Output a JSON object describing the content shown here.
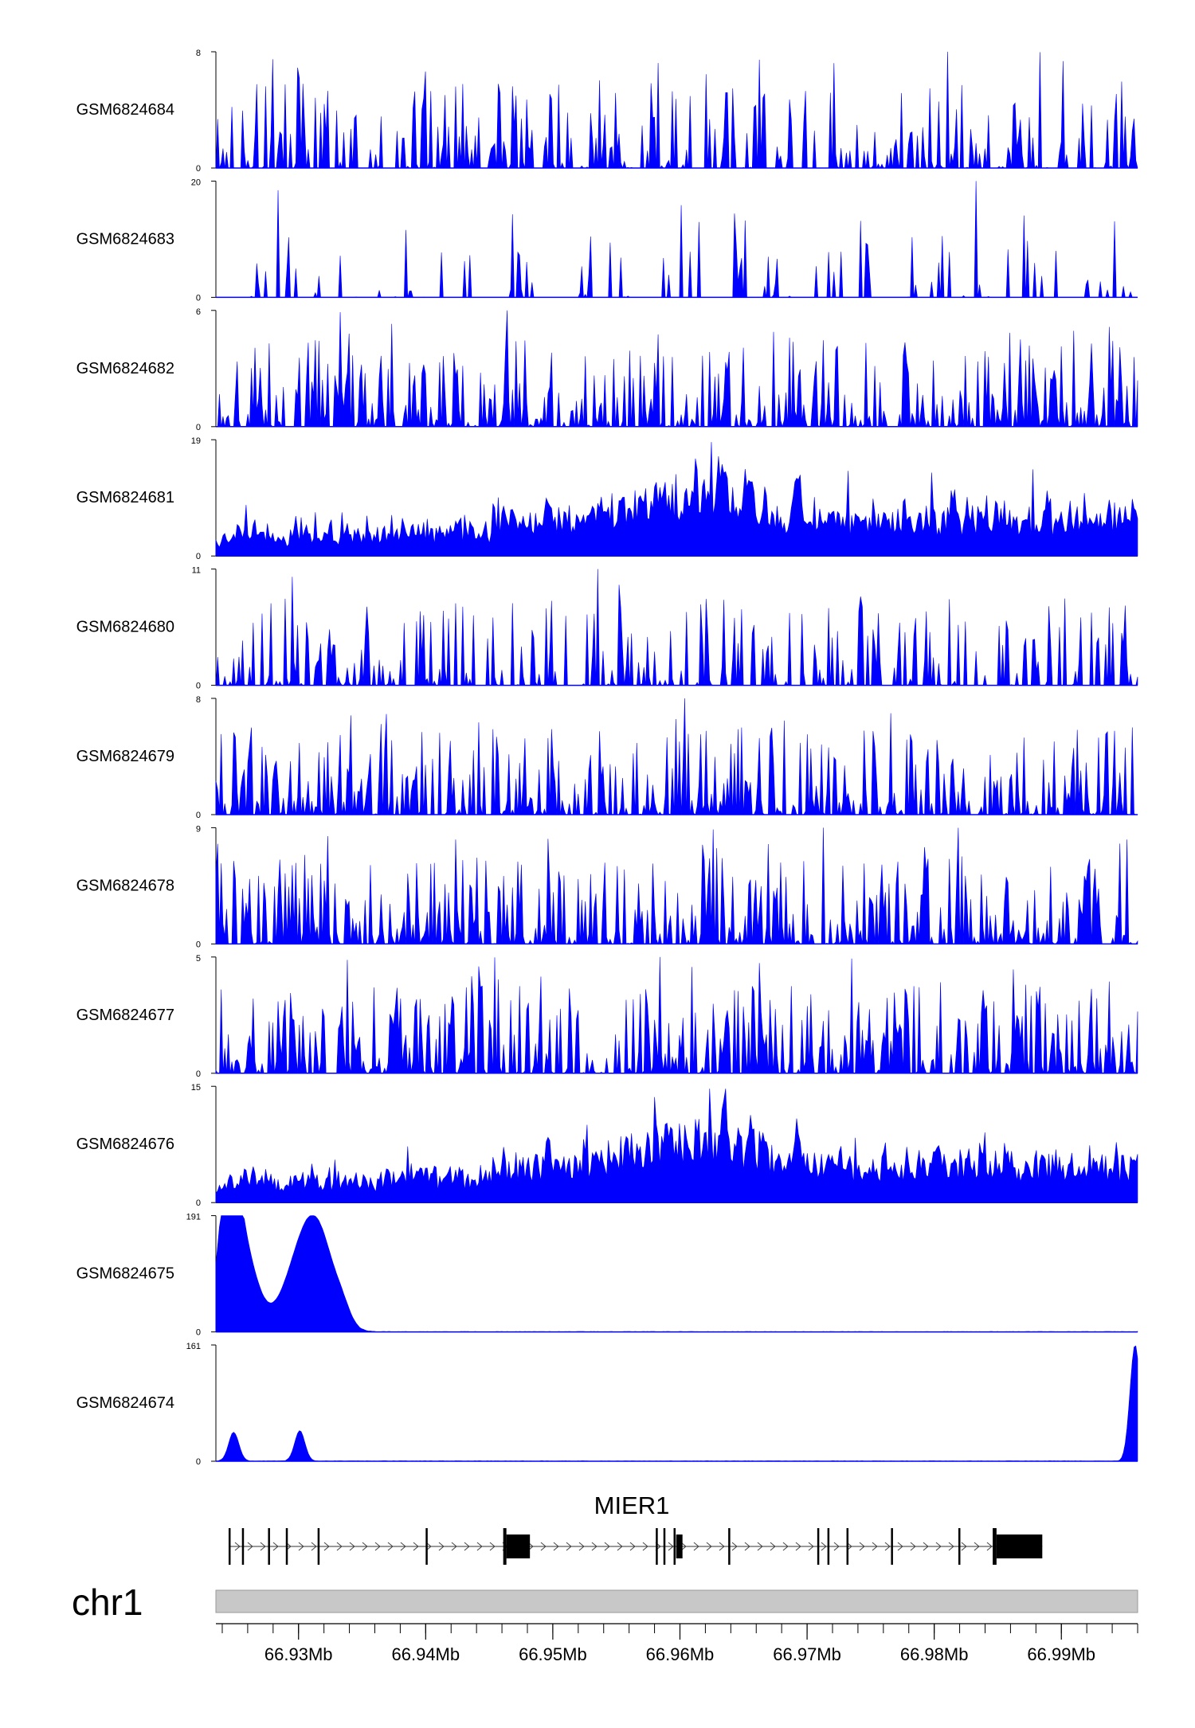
{
  "chart_data": {
    "type": "area",
    "colors": {
      "signal": "#0000ff",
      "gene": "#000000",
      "ideogram": "#c8c8c8",
      "axis": "#000000"
    },
    "region": {
      "chromosome": "chr1",
      "start_mb": 66.9235,
      "end_mb": 66.996
    },
    "tracks": [
      {
        "sample": "GSM6824684",
        "ymax": 8,
        "ymin": 0,
        "profile": "sparse_spiky"
      },
      {
        "sample": "GSM6824683",
        "ymax": 20,
        "ymin": 0,
        "profile": "very_sparse"
      },
      {
        "sample": "GSM6824682",
        "ymax": 6,
        "ymin": 0,
        "profile": "dense_spiky"
      },
      {
        "sample": "GSM6824681",
        "ymax": 19,
        "ymin": 0,
        "profile": "broad_increasing"
      },
      {
        "sample": "GSM6824680",
        "ymax": 11,
        "ymin": 0,
        "profile": "sparse_spiky"
      },
      {
        "sample": "GSM6824679",
        "ymax": 8,
        "ymin": 0,
        "profile": "dense_spiky"
      },
      {
        "sample": "GSM6824678",
        "ymax": 9,
        "ymin": 0,
        "profile": "dense_spiky"
      },
      {
        "sample": "GSM6824677",
        "ymax": 5,
        "ymin": 0,
        "profile": "dense_spiky"
      },
      {
        "sample": "GSM6824676",
        "ymax": 15,
        "ymin": 0,
        "profile": "broad_increasing"
      },
      {
        "sample": "GSM6824675",
        "ymax": 191,
        "ymin": 0,
        "profile": "peaks",
        "peaks_mb": [
          {
            "pos": 66.9245,
            "height": 191,
            "width": 0.0007
          },
          {
            "pos": 66.9254,
            "height": 150,
            "width": 0.0012
          },
          {
            "pos": 66.9305,
            "height": 135,
            "width": 0.0015
          },
          {
            "pos": 66.9318,
            "height": 80,
            "width": 0.0012
          },
          {
            "pos": 66.9335,
            "height": 18,
            "width": 0.0006
          }
        ]
      },
      {
        "sample": "GSM6824674",
        "ymax": 161,
        "ymin": 0,
        "profile": "peaks",
        "peaks_mb": [
          {
            "pos": 66.9249,
            "height": 40,
            "width": 0.0004
          },
          {
            "pos": 66.9301,
            "height": 42,
            "width": 0.0004
          },
          {
            "pos": 66.9958,
            "height": 161,
            "width": 0.0004
          }
        ]
      }
    ],
    "gene": {
      "name": "MIER1",
      "strand": "+",
      "tx_start_mb": 66.9245,
      "tx_end_mb": 66.9885,
      "exons_mb": [
        {
          "start": 66.9245,
          "end": 66.92465,
          "thick": false
        },
        {
          "start": 66.92555,
          "end": 66.9257,
          "thick": false
        },
        {
          "start": 66.9276,
          "end": 66.92775,
          "thick": false
        },
        {
          "start": 66.929,
          "end": 66.92915,
          "thick": false
        },
        {
          "start": 66.9315,
          "end": 66.93165,
          "thick": false
        },
        {
          "start": 66.94,
          "end": 66.94015,
          "thick": false
        },
        {
          "start": 66.9461,
          "end": 66.94635,
          "thick": false
        },
        {
          "start": 66.94635,
          "end": 66.9482,
          "thick": true
        },
        {
          "start": 66.9581,
          "end": 66.95825,
          "thick": false
        },
        {
          "start": 66.9587,
          "end": 66.95885,
          "thick": false
        },
        {
          "start": 66.9595,
          "end": 66.95965,
          "thick": false
        },
        {
          "start": 66.9597,
          "end": 66.9602,
          "thick": true
        },
        {
          "start": 66.9638,
          "end": 66.96395,
          "thick": false
        },
        {
          "start": 66.9708,
          "end": 66.97095,
          "thick": false
        },
        {
          "start": 66.9716,
          "end": 66.97175,
          "thick": false
        },
        {
          "start": 66.9731,
          "end": 66.97325,
          "thick": false
        },
        {
          "start": 66.9766,
          "end": 66.97675,
          "thick": false
        },
        {
          "start": 66.9819,
          "end": 66.98205,
          "thick": false
        },
        {
          "start": 66.9846,
          "end": 66.9849,
          "thick": false
        },
        {
          "start": 66.9849,
          "end": 66.9885,
          "thick": true
        }
      ]
    },
    "x_axis": {
      "tick_labels": [
        "66.93Mb",
        "66.94Mb",
        "66.95Mb",
        "66.96Mb",
        "66.97Mb",
        "66.98Mb",
        "66.99Mb"
      ],
      "tick_values_mb": [
        66.93,
        66.94,
        66.95,
        66.96,
        66.97,
        66.98,
        66.99
      ],
      "minor_tick_step_mb": 0.002
    }
  }
}
